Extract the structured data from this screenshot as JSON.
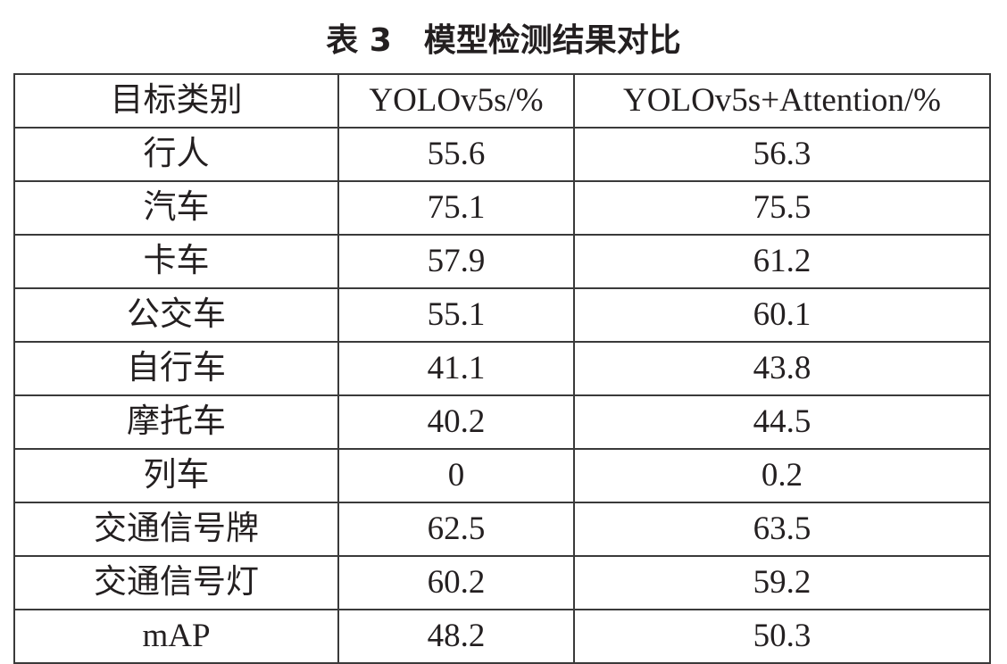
{
  "table": {
    "title": "表 3　模型检测结果对比",
    "header": [
      "目标类别",
      "YOLOv5s/%",
      "YOLOv5s+Attention/%"
    ],
    "rows": [
      [
        "行人",
        "55.6",
        "56.3"
      ],
      [
        "汽车",
        "75.1",
        "75.5"
      ],
      [
        "卡车",
        "57.9",
        "61.2"
      ],
      [
        "公交车",
        "55.1",
        "60.1"
      ],
      [
        "自行车",
        "41.1",
        "43.8"
      ],
      [
        "摩托车",
        "40.2",
        "44.5"
      ],
      [
        "列车",
        "0",
        "0.2"
      ],
      [
        "交通信号牌",
        "62.5",
        "63.5"
      ],
      [
        "交通信号灯",
        "60.2",
        "59.2"
      ],
      [
        "mAP",
        "48.2",
        "50.3"
      ]
    ]
  }
}
